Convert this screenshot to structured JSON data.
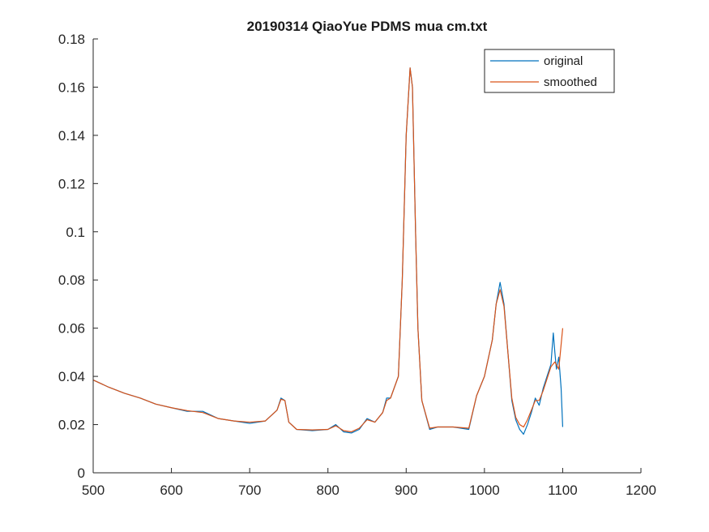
{
  "chart_data": {
    "type": "line",
    "title": "20190314 QiaoYue PDMS mua cm.txt",
    "xlabel": "",
    "ylabel": "",
    "xlim": [
      500,
      1200
    ],
    "ylim": [
      0,
      0.18
    ],
    "grid": false,
    "legend_position": "top-right",
    "x_ticks": [
      "500",
      "600",
      "700",
      "800",
      "900",
      "1000",
      "1100",
      "1200"
    ],
    "y_ticks": [
      "0",
      "0.02",
      "0.04",
      "0.06",
      "0.08",
      "0.1",
      "0.12",
      "0.14",
      "0.16",
      "0.18"
    ],
    "series": [
      {
        "name": "original",
        "color": "#0072BD",
        "x": [
          500,
          520,
          540,
          560,
          580,
          600,
          620,
          640,
          660,
          680,
          700,
          720,
          735,
          740,
          745,
          750,
          760,
          780,
          800,
          810,
          820,
          830,
          840,
          850,
          860,
          870,
          875,
          880,
          890,
          895,
          900,
          905,
          908,
          912,
          915,
          920,
          930,
          940,
          960,
          980,
          990,
          1000,
          1010,
          1015,
          1020,
          1025,
          1030,
          1035,
          1040,
          1045,
          1050,
          1055,
          1060,
          1065,
          1070,
          1075,
          1080,
          1085,
          1088,
          1090,
          1092,
          1095,
          1098,
          1100
        ],
        "y": [
          0.0385,
          0.0355,
          0.033,
          0.031,
          0.0285,
          0.027,
          0.0255,
          0.0255,
          0.0225,
          0.0215,
          0.0205,
          0.0215,
          0.026,
          0.031,
          0.03,
          0.021,
          0.018,
          0.0175,
          0.018,
          0.02,
          0.017,
          0.0165,
          0.018,
          0.0225,
          0.021,
          0.025,
          0.031,
          0.031,
          0.04,
          0.08,
          0.14,
          0.168,
          0.16,
          0.1,
          0.06,
          0.03,
          0.018,
          0.019,
          0.019,
          0.018,
          0.032,
          0.04,
          0.055,
          0.07,
          0.079,
          0.07,
          0.05,
          0.03,
          0.022,
          0.018,
          0.016,
          0.02,
          0.025,
          0.031,
          0.028,
          0.035,
          0.04,
          0.045,
          0.058,
          0.05,
          0.043,
          0.048,
          0.035,
          0.019
        ]
      },
      {
        "name": "smoothed",
        "color": "#D95319",
        "x": [
          500,
          520,
          540,
          560,
          580,
          600,
          620,
          640,
          660,
          680,
          700,
          720,
          735,
          740,
          745,
          750,
          760,
          780,
          800,
          810,
          820,
          830,
          840,
          850,
          860,
          870,
          875,
          880,
          890,
          895,
          900,
          905,
          908,
          912,
          915,
          920,
          930,
          940,
          960,
          980,
          990,
          1000,
          1010,
          1015,
          1020,
          1025,
          1030,
          1035,
          1040,
          1045,
          1050,
          1055,
          1060,
          1065,
          1070,
          1075,
          1080,
          1085,
          1090,
          1095,
          1100
        ],
        "y": [
          0.0385,
          0.0355,
          0.033,
          0.031,
          0.0285,
          0.027,
          0.0258,
          0.025,
          0.0225,
          0.0215,
          0.021,
          0.0215,
          0.026,
          0.0305,
          0.03,
          0.021,
          0.018,
          0.0178,
          0.018,
          0.0195,
          0.0175,
          0.017,
          0.0185,
          0.022,
          0.021,
          0.025,
          0.03,
          0.031,
          0.04,
          0.08,
          0.14,
          0.168,
          0.16,
          0.1,
          0.06,
          0.03,
          0.0185,
          0.019,
          0.019,
          0.0185,
          0.032,
          0.04,
          0.055,
          0.07,
          0.076,
          0.069,
          0.05,
          0.031,
          0.023,
          0.02,
          0.019,
          0.022,
          0.026,
          0.03,
          0.03,
          0.034,
          0.039,
          0.044,
          0.046,
          0.043,
          0.06
        ]
      }
    ]
  }
}
